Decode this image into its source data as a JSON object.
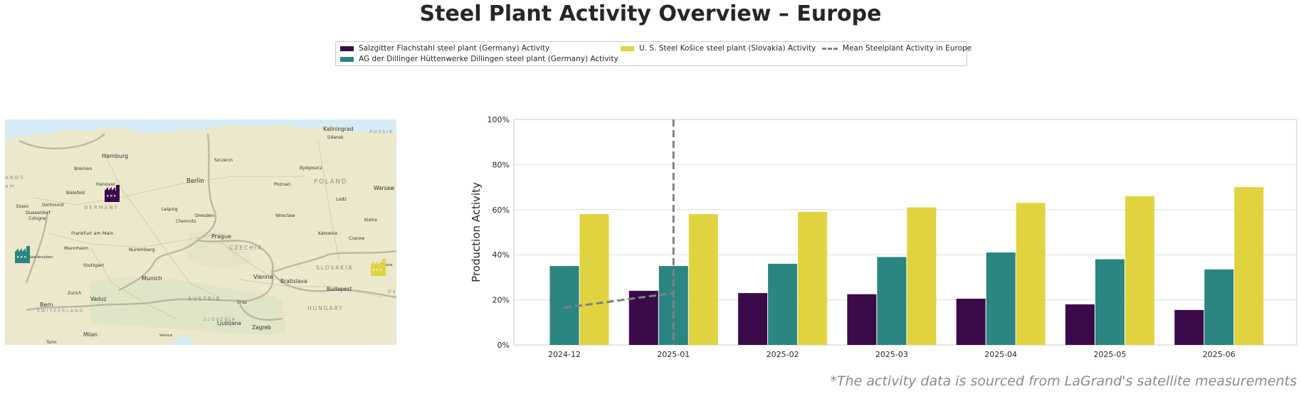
{
  "title": "Steel Plant Activity Overview – Europe",
  "legend": [
    {
      "label": "Salzgitter Flachstahl steel plant (Germany) Activity",
      "color": "#3b0a4a",
      "kind": "bar"
    },
    {
      "label": "AG der Dillinger Hüttenwerke Dillingen steel plant (Germany) Activity",
      "color": "#2b8580",
      "kind": "bar"
    },
    {
      "label": "U. S. Steel Košice steel plant (Slovakia) Activity",
      "color": "#e1d33f",
      "kind": "bar"
    },
    {
      "label": "Mean Steelplant Activity in Europe",
      "color": "#808080",
      "kind": "dashed-line"
    }
  ],
  "map": {
    "cities": [
      "Kaliningrad",
      "Gdansk",
      "Hamburg",
      "Szczecin",
      "Bydgoszcz",
      "Bremen",
      "Hanover",
      "Berlin",
      "Poznan",
      "Warsaw",
      "Bielefeld",
      "Essen",
      "Dortmund",
      "Dusseldorf",
      "Cologne",
      "Leipzig",
      "Lodz",
      "Dresden",
      "Chemnitz",
      "Wroclaw",
      "Kielce",
      "Frankfurt am Main",
      "Prague",
      "Katowice",
      "Cracow",
      "Mannheim",
      "Nuremberg",
      "Saarbrucken",
      "Stuttgart",
      "Munich",
      "Vienna",
      "Bratislava",
      "Kosice",
      "Zurich",
      "Vaduz",
      "Budapest",
      "Bern",
      "Graz",
      "Ljubljana",
      "Zagreb",
      "Milan",
      "Venice",
      "Turin"
    ],
    "countries": [
      "RUSSIA",
      "POLAND",
      "GERMANY",
      "CZECHIA",
      "SLOVAKIA",
      "AUSTRIA",
      "HUNGARY",
      "SWITZERLAND",
      "SLOVENIA"
    ],
    "edge_labels": [
      "ANDS",
      "am",
      "Dé"
    ],
    "markers": [
      {
        "plant": "Salzgitter",
        "color": "#3b0a4a",
        "icon": "factory-icon"
      },
      {
        "plant": "Dillingen",
        "color": "#2b8580",
        "icon": "factory-icon"
      },
      {
        "plant": "Kosice",
        "color": "#e1d33f",
        "icon": "factory-icon"
      }
    ]
  },
  "chart_data": {
    "type": "bar",
    "categories": [
      "2024-12",
      "2025-01",
      "2025-02",
      "2025-03",
      "2025-04",
      "2025-05",
      "2025-06"
    ],
    "series": [
      {
        "name": "Salzgitter Flachstahl steel plant (Germany) Activity",
        "color": "#3b0a4a",
        "values": [
          null,
          24,
          23,
          22.5,
          20.5,
          18,
          15.5
        ]
      },
      {
        "name": "AG der Dillinger Hüttenwerke Dillingen steel plant (Germany) Activity",
        "color": "#2b8580",
        "values": [
          35,
          35,
          36,
          39,
          41,
          38,
          33.5
        ]
      },
      {
        "name": "U. S. Steel Košice steel plant (Slovakia) Activity",
        "color": "#e1d33f",
        "values": [
          58,
          58,
          59,
          61,
          63,
          66,
          70
        ]
      }
    ],
    "mean_line": {
      "name": "Mean Steelplant Activity in Europe",
      "color": "#808080",
      "values": [
        16.5,
        23,
        null,
        null,
        null,
        null,
        null
      ]
    },
    "vertical_marker": {
      "category": "2025-01",
      "color": "#808080"
    },
    "ylabel": "Production Activity",
    "xlabel": "",
    "ylim": [
      0,
      100
    ],
    "yticks": [
      0,
      20,
      40,
      60,
      80,
      100
    ],
    "ytick_labels": [
      "0%",
      "20%",
      "40%",
      "60%",
      "80%",
      "100%"
    ],
    "grid": true,
    "legend_position": "top-center"
  },
  "footnote": "*The activity data is sourced from LaGrand's satellite measurements"
}
